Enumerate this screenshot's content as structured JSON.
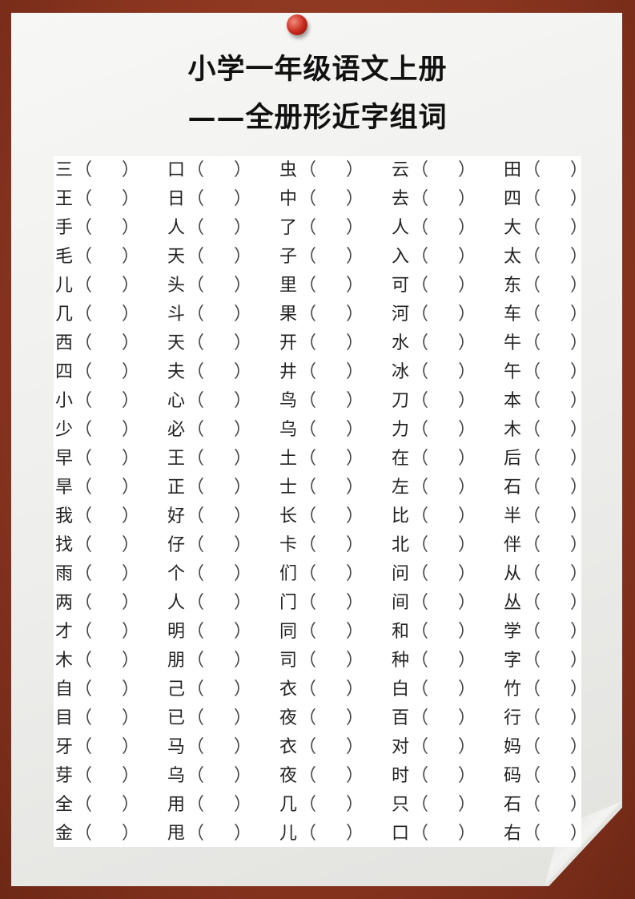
{
  "title_line1": "小学一年级语文上册",
  "title_line2": "——全册形近字组词",
  "open_paren": "（",
  "close_paren": "）",
  "rows": [
    [
      "三",
      "口",
      "虫",
      "云",
      "田"
    ],
    [
      "王",
      "日",
      "中",
      "去",
      "四"
    ],
    [
      "手",
      "人",
      "了",
      "人",
      "大"
    ],
    [
      "毛",
      "天",
      "子",
      "入",
      "太"
    ],
    [
      "儿",
      "头",
      "里",
      "可",
      "东"
    ],
    [
      "几",
      "斗",
      "果",
      "河",
      "车"
    ],
    [
      "西",
      "天",
      "开",
      "水",
      "牛"
    ],
    [
      "四",
      "夫",
      "井",
      "冰",
      "午"
    ],
    [
      "小",
      "心",
      "鸟",
      "刀",
      "本"
    ],
    [
      "少",
      "必",
      "乌",
      "力",
      "木"
    ],
    [
      "早",
      "王",
      "土",
      "在",
      "后"
    ],
    [
      "旱",
      "正",
      "士",
      "左",
      "石"
    ],
    [
      "我",
      "好",
      "长",
      "比",
      "半"
    ],
    [
      "找",
      "仔",
      "卡",
      "北",
      "伴"
    ],
    [
      "雨",
      "个",
      "们",
      "问",
      "从"
    ],
    [
      "两",
      "人",
      "门",
      "间",
      "丛"
    ],
    [
      "才",
      "明",
      "同",
      "和",
      "学"
    ],
    [
      "木",
      "朋",
      "司",
      "种",
      "字"
    ],
    [
      "自",
      "己",
      "衣",
      "白",
      "竹"
    ],
    [
      "目",
      "已",
      "夜",
      "百",
      "行"
    ],
    [
      "牙",
      "马",
      "衣",
      "对",
      "妈"
    ],
    [
      "芽",
      "乌",
      "夜",
      "时",
      "码"
    ],
    [
      "全",
      "用",
      "几",
      "只",
      "石"
    ],
    [
      "金",
      "甩",
      "儿",
      "口",
      "右"
    ]
  ]
}
